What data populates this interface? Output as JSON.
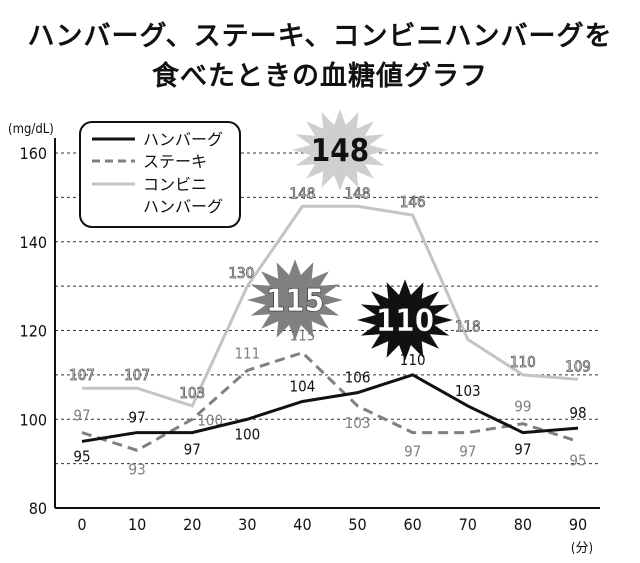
{
  "title_lines": [
    "ハンバーグ、ステーキ、コンビニハンバーグを",
    "食べたときの血糖値グラフ"
  ],
  "chart_data": {
    "type": "line",
    "title": "ハンバーグ、ステーキ、コンビニハンバーグを食べたときの血糖値グラフ",
    "ylabel": "(mg/dL)",
    "xlabel": "(分)",
    "x": [
      0,
      10,
      20,
      30,
      40,
      50,
      60,
      70,
      80,
      90
    ],
    "xlim": [
      0,
      90
    ],
    "ylim": [
      80,
      160
    ],
    "y_ticks": [
      80,
      100,
      120,
      140,
      160
    ],
    "grid": true,
    "legend": "top-left",
    "series": [
      {
        "name": "ハンバーグ",
        "style": "solid",
        "color": "#111111",
        "values": [
          95,
          97,
          97,
          100,
          104,
          106,
          110,
          103,
          97,
          98
        ]
      },
      {
        "name": "ステーキ",
        "style": "dashed",
        "color": "#808080",
        "values": [
          97,
          93,
          100,
          111,
          115,
          103,
          97,
          97,
          99,
          95
        ]
      },
      {
        "name": "コンビニ\nハンバーグ",
        "name_lines": [
          "コンビニ",
          "ハンバーグ"
        ],
        "style": "solid",
        "color": "#c4c4c4",
        "values": [
          107,
          107,
          103,
          130,
          148,
          148,
          146,
          118,
          110,
          109
        ]
      }
    ],
    "annotations": [
      {
        "text": "148",
        "series": "コンビニハンバーグ",
        "color": "#cfcfcf"
      },
      {
        "text": "115",
        "series": "ステーキ",
        "color": "#808080"
      },
      {
        "text": "110",
        "series": "ハンバーグ",
        "color": "#111111"
      }
    ]
  }
}
